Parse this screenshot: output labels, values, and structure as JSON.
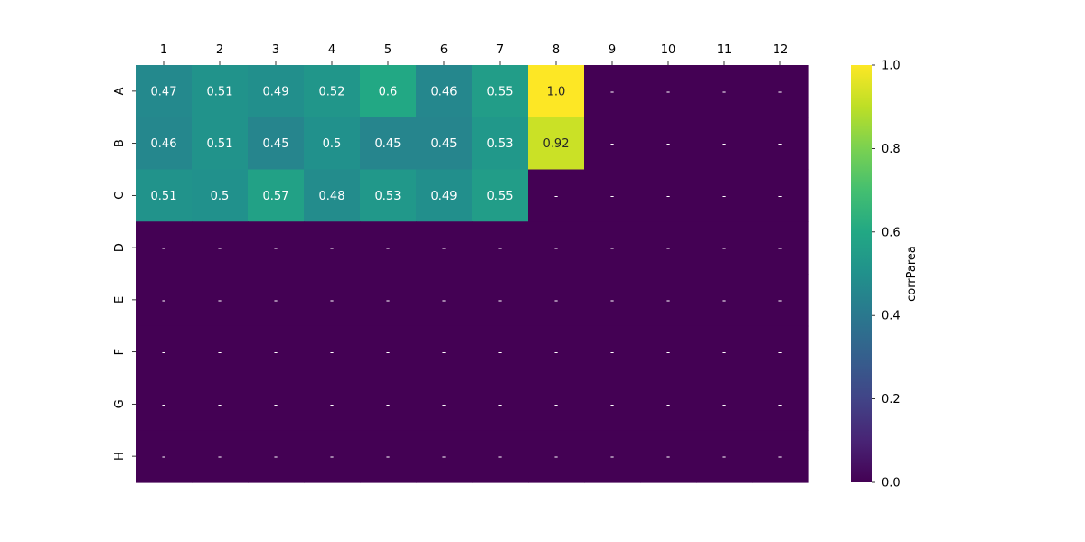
{
  "chart_data": {
    "type": "heatmap",
    "title": "",
    "xlabel": "",
    "ylabel": "",
    "x_categories": [
      "1",
      "2",
      "3",
      "4",
      "5",
      "6",
      "7",
      "8",
      "9",
      "10",
      "11",
      "12"
    ],
    "y_categories": [
      "A",
      "B",
      "C",
      "D",
      "E",
      "F",
      "G",
      "H"
    ],
    "values": [
      [
        0.47,
        0.51,
        0.49,
        0.52,
        0.6,
        0.46,
        0.55,
        1.0,
        0,
        0,
        0,
        0
      ],
      [
        0.46,
        0.51,
        0.45,
        0.5,
        0.45,
        0.45,
        0.53,
        0.92,
        0,
        0,
        0,
        0
      ],
      [
        0.51,
        0.5,
        0.57,
        0.48,
        0.53,
        0.49,
        0.55,
        0,
        0,
        0,
        0,
        0
      ],
      [
        0,
        0,
        0,
        0,
        0,
        0,
        0,
        0,
        0,
        0,
        0,
        0
      ],
      [
        0,
        0,
        0,
        0,
        0,
        0,
        0,
        0,
        0,
        0,
        0,
        0
      ],
      [
        0,
        0,
        0,
        0,
        0,
        0,
        0,
        0,
        0,
        0,
        0,
        0
      ],
      [
        0,
        0,
        0,
        0,
        0,
        0,
        0,
        0,
        0,
        0,
        0,
        0
      ],
      [
        0,
        0,
        0,
        0,
        0,
        0,
        0,
        0,
        0,
        0,
        0,
        0
      ]
    ],
    "annotations": [
      [
        "0.47",
        "0.51",
        "0.49",
        "0.52",
        "0.6",
        "0.46",
        "0.55",
        "1.0",
        "-",
        "-",
        "-",
        "-"
      ],
      [
        "0.46",
        "0.51",
        "0.45",
        "0.5",
        "0.45",
        "0.45",
        "0.53",
        "0.92",
        "-",
        "-",
        "-",
        "-"
      ],
      [
        "0.51",
        "0.5",
        "0.57",
        "0.48",
        "0.53",
        "0.49",
        "0.55",
        "-",
        "-",
        "-",
        "-",
        "-"
      ],
      [
        "-",
        "-",
        "-",
        "-",
        "-",
        "-",
        "-",
        "-",
        "-",
        "-",
        "-",
        "-"
      ],
      [
        "-",
        "-",
        "-",
        "-",
        "-",
        "-",
        "-",
        "-",
        "-",
        "-",
        "-",
        "-"
      ],
      [
        "-",
        "-",
        "-",
        "-",
        "-",
        "-",
        "-",
        "-",
        "-",
        "-",
        "-",
        "-"
      ],
      [
        "-",
        "-",
        "-",
        "-",
        "-",
        "-",
        "-",
        "-",
        "-",
        "-",
        "-",
        "-"
      ],
      [
        "-",
        "-",
        "-",
        "-",
        "-",
        "-",
        "-",
        "-",
        "-",
        "-",
        "-",
        "-"
      ]
    ],
    "x_axis_position": "top",
    "colormap": "viridis",
    "vmin": 0,
    "vmax": 1,
    "colorbar": {
      "label": "corrParea",
      "ticks": [
        "0.0",
        "0.2",
        "0.4",
        "0.6",
        "0.8",
        "1.0"
      ],
      "placement": "right"
    },
    "grid": false
  }
}
